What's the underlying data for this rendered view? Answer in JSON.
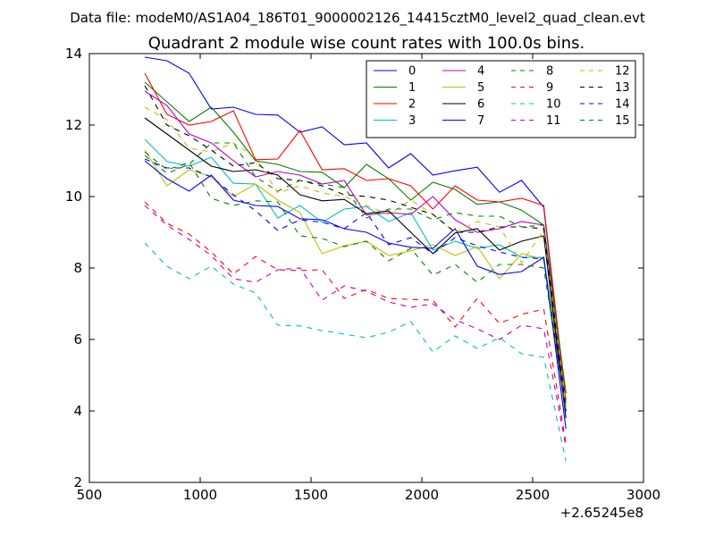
{
  "header": {
    "datafile_text": "Data file: modeM0/AS1A04_186T01_9000002126_14415cztM0_level2_quad_clean.evt"
  },
  "chart_data": {
    "type": "line",
    "title": "Quadrant 2 module wise count rates with 100.0s bins.",
    "xlabel": "",
    "ylabel": "",
    "x_offset_text": "+2.65245e8",
    "xlim": [
      500,
      3000
    ],
    "ylim": [
      2,
      14
    ],
    "xticks": [
      500,
      1000,
      1500,
      2000,
      2500,
      3000
    ],
    "yticks": [
      2,
      4,
      6,
      8,
      10,
      12,
      14
    ],
    "grid": false,
    "legend": {
      "placement": "top-right",
      "columns": 4
    },
    "x": [
      750,
      850,
      950,
      1050,
      1150,
      1250,
      1350,
      1450,
      1550,
      1650,
      1750,
      1850,
      1950,
      2050,
      2150,
      2250,
      2350,
      2450,
      2550,
      2650
    ],
    "series": [
      {
        "name": "0",
        "color": "#0000ff",
        "dash": "solid",
        "values": [
          13.9,
          13.8,
          13.45,
          12.45,
          12.5,
          12.3,
          12.28,
          11.8,
          11.95,
          11.45,
          11.5,
          10.8,
          11.2,
          10.6,
          10.72,
          10.82,
          10.12,
          10.45,
          9.7,
          4.2
        ]
      },
      {
        "name": "1",
        "color": "#008000",
        "dash": "solid",
        "values": [
          13.2,
          12.65,
          12.1,
          12.5,
          11.8,
          11.0,
          10.9,
          10.7,
          10.68,
          10.25,
          10.9,
          10.5,
          9.9,
          10.4,
          10.2,
          9.78,
          9.85,
          9.62,
          9.2,
          4.5
        ]
      },
      {
        "name": "2",
        "color": "#ff0000",
        "dash": "solid",
        "values": [
          13.45,
          12.3,
          12.0,
          12.1,
          12.4,
          11.03,
          11.05,
          11.85,
          10.75,
          10.78,
          10.45,
          10.5,
          10.3,
          9.65,
          10.3,
          9.9,
          9.85,
          9.95,
          9.75,
          4.3
        ]
      },
      {
        "name": "3",
        "color": "#00bfbf",
        "dash": "solid",
        "values": [
          11.6,
          10.98,
          10.85,
          11.1,
          10.37,
          10.35,
          9.4,
          9.75,
          9.28,
          9.65,
          9.72,
          9.3,
          9.55,
          8.5,
          8.75,
          8.55,
          8.65,
          8.3,
          8.3,
          4.1
        ]
      },
      {
        "name": "4",
        "color": "#bf00bf",
        "dash": "solid",
        "values": [
          12.95,
          12.55,
          11.75,
          11.5,
          11.0,
          10.55,
          10.7,
          10.6,
          10.35,
          10.45,
          9.48,
          9.55,
          9.5,
          10.0,
          9.35,
          9.0,
          9.1,
          9.3,
          9.2,
          4.0
        ]
      },
      {
        "name": "5",
        "color": "#bfbf00",
        "dash": "solid",
        "values": [
          11.3,
          10.3,
          10.75,
          10.55,
          10.0,
          10.35,
          9.9,
          9.55,
          8.4,
          8.62,
          8.75,
          8.35,
          8.48,
          8.65,
          8.35,
          8.6,
          7.7,
          8.4,
          8.25,
          4.05
        ]
      },
      {
        "name": "6",
        "color": "#000000",
        "dash": "solid",
        "values": [
          12.2,
          11.75,
          11.3,
          10.85,
          10.7,
          10.75,
          10.6,
          10.05,
          9.88,
          9.92,
          9.52,
          9.6,
          9.0,
          8.4,
          8.98,
          9.1,
          8.5,
          8.75,
          8.9,
          3.8
        ]
      },
      {
        "name": "7",
        "color": "#0000ff",
        "dash": "solid",
        "values": [
          11.0,
          10.5,
          10.15,
          10.6,
          9.9,
          9.75,
          9.72,
          9.38,
          9.35,
          9.1,
          9.0,
          8.7,
          8.58,
          8.55,
          9.1,
          8.05,
          7.82,
          7.9,
          8.3,
          3.5
        ]
      },
      {
        "name": "8",
        "color": "#008000",
        "dash": "dashed",
        "values": [
          11.25,
          10.75,
          10.95,
          9.95,
          9.75,
          9.88,
          9.85,
          8.9,
          8.83,
          8.6,
          8.75,
          8.2,
          8.55,
          7.8,
          8.1,
          7.6,
          8.1,
          8.1,
          8.0,
          4.0
        ]
      },
      {
        "name": "9",
        "color": "#ff0000",
        "dash": "dashed",
        "values": [
          9.85,
          9.25,
          8.95,
          8.45,
          7.83,
          8.32,
          7.95,
          7.93,
          7.95,
          7.15,
          7.4,
          7.15,
          7.12,
          7.1,
          6.35,
          7.15,
          6.45,
          6.7,
          6.85,
          3.1
        ]
      },
      {
        "name": "10",
        "color": "#00bfbf",
        "dash": "dashed",
        "values": [
          8.7,
          8.05,
          7.7,
          8.05,
          7.55,
          7.3,
          6.4,
          6.38,
          6.25,
          6.15,
          6.05,
          6.2,
          6.5,
          5.65,
          6.1,
          5.75,
          6.05,
          5.6,
          5.5,
          2.6
        ]
      },
      {
        "name": "11",
        "color": "#bf00bf",
        "dash": "dashed",
        "values": [
          9.75,
          9.2,
          8.8,
          8.35,
          7.7,
          7.6,
          7.95,
          8.0,
          7.1,
          7.5,
          7.35,
          7.05,
          6.9,
          7.0,
          6.55,
          6.3,
          6.0,
          6.4,
          6.3,
          3.0
        ]
      },
      {
        "name": "12",
        "color": "#bfbf00",
        "dash": "dashed",
        "values": [
          12.5,
          12.15,
          11.35,
          11.25,
          11.5,
          11.1,
          10.1,
          10.3,
          10.1,
          10.0,
          9.75,
          9.5,
          9.9,
          9.5,
          9.0,
          9.3,
          9.15,
          8.15,
          9.05,
          4.2
        ]
      },
      {
        "name": "13",
        "color": "#000000",
        "dash": "dashed",
        "values": [
          13.1,
          12.0,
          11.7,
          11.3,
          10.85,
          10.95,
          10.5,
          10.45,
          10.3,
          10.05,
          10.0,
          9.9,
          9.7,
          9.5,
          9.0,
          9.0,
          9.15,
          9.15,
          9.1,
          4.0
        ]
      },
      {
        "name": "14",
        "color": "#0000ff",
        "dash": "dashed",
        "values": [
          11.05,
          10.8,
          10.8,
          10.55,
          10.05,
          9.6,
          9.05,
          9.35,
          9.28,
          9.1,
          9.55,
          8.65,
          8.85,
          8.4,
          8.85,
          8.62,
          8.45,
          8.3,
          8.25,
          3.9
        ]
      },
      {
        "name": "15",
        "color": "#008000",
        "dash": "dashed",
        "values": [
          11.15,
          10.65,
          10.9,
          11.5,
          11.5,
          10.55,
          10.15,
          10.45,
          10.35,
          10.25,
          9.4,
          9.65,
          9.65,
          9.35,
          9.55,
          9.45,
          9.45,
          9.15,
          9.2,
          4.5
        ]
      }
    ]
  }
}
